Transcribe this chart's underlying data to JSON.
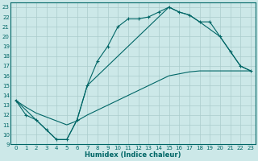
{
  "xlabel": "Humidex (Indice chaleur)",
  "background_color": "#cce8e8",
  "grid_color": "#aacccc",
  "line_color": "#006666",
  "xlim": [
    -0.5,
    23.5
  ],
  "ylim": [
    9,
    23.5
  ],
  "xticks": [
    0,
    1,
    2,
    3,
    4,
    5,
    6,
    7,
    8,
    9,
    10,
    11,
    12,
    13,
    14,
    15,
    16,
    17,
    18,
    19,
    20,
    21,
    22,
    23
  ],
  "yticks": [
    9,
    10,
    11,
    12,
    13,
    14,
    15,
    16,
    17,
    18,
    19,
    20,
    21,
    22,
    23
  ],
  "line1_x": [
    0,
    1,
    2,
    3,
    4,
    5,
    6,
    7,
    8,
    9,
    10,
    11,
    12,
    13,
    14,
    15,
    16,
    17,
    18,
    19,
    20,
    21,
    22,
    23
  ],
  "line1_y": [
    13.5,
    12.0,
    11.5,
    10.5,
    9.5,
    9.5,
    11.5,
    15.0,
    17.5,
    19.0,
    21.0,
    21.8,
    21.8,
    22.0,
    22.5,
    23.0,
    22.5,
    22.2,
    21.5,
    21.5,
    20.0,
    18.5,
    17.0,
    16.5
  ],
  "line2_x": [
    0,
    1,
    2,
    3,
    4,
    5,
    6,
    7,
    8,
    9,
    10,
    11,
    12,
    13,
    14,
    15,
    16,
    17,
    18,
    19,
    20,
    21,
    22,
    23
  ],
  "line2_y": [
    13.5,
    12.8,
    12.2,
    11.8,
    11.4,
    11.0,
    11.4,
    12.0,
    12.5,
    13.0,
    13.5,
    14.0,
    14.5,
    15.0,
    15.5,
    16.0,
    16.2,
    16.4,
    16.5,
    16.5,
    16.5,
    16.5,
    16.5,
    16.5
  ],
  "line3_x": [
    0,
    4,
    5,
    6,
    7,
    15,
    16,
    17,
    18,
    20,
    21,
    22,
    23
  ],
  "line3_y": [
    13.5,
    9.5,
    9.5,
    11.5,
    15.0,
    23.0,
    22.5,
    22.2,
    21.5,
    20.0,
    18.5,
    17.0,
    16.5
  ],
  "figsize": [
    3.2,
    2.0
  ],
  "dpi": 100
}
